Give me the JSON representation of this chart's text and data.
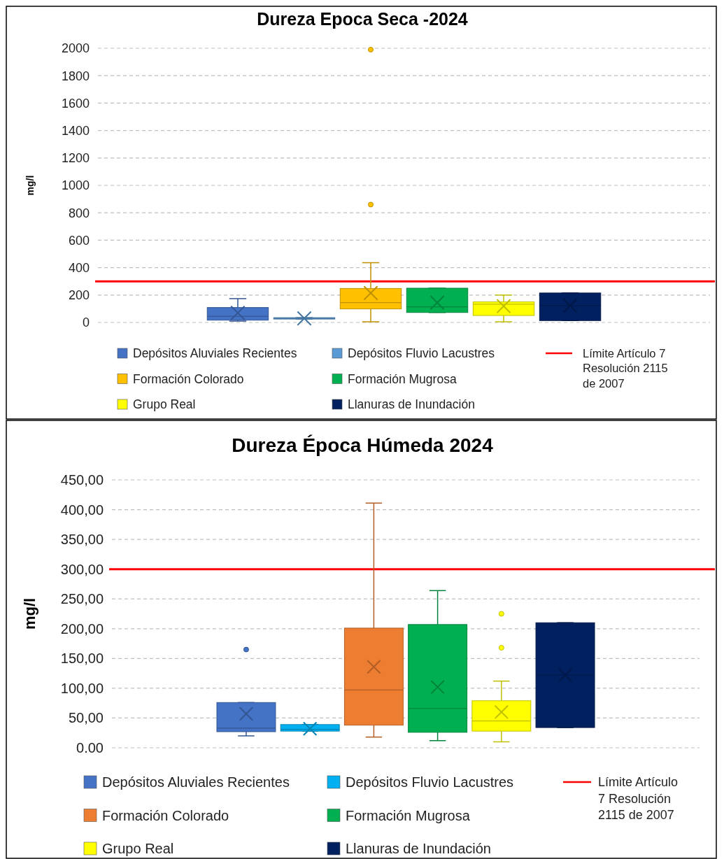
{
  "chart_data": [
    {
      "type": "box",
      "title": "Dureza Epoca Seca -2024",
      "ylabel": "mg/l",
      "categories": [
        null
      ],
      "series": [
        {
          "name": "Depósitos Aluviales Recientes",
          "color": "#4472c4",
          "boxes": [
            {
              "low": 10,
              "q1": 17,
              "median": 45,
              "q3": 109,
              "high": 174,
              "mean": 70
            }
          ]
        },
        {
          "name": "Depósitos Fluvio Lacustres",
          "color": "#5b9bd5",
          "boxes": [
            {
              "low": 25,
              "q1": 25,
              "median": 30,
              "q3": 35,
              "high": 35,
              "mean": 30
            }
          ]
        },
        {
          "name": "Formación Colorado",
          "color": "#ffc000",
          "boxes": [
            {
              "low": 5,
              "q1": 99,
              "median": 145,
              "q3": 248,
              "high": 436,
              "mean": 215,
              "outliers": [
                860,
                1990
              ]
            }
          ]
        },
        {
          "name": "Formación Mugrosa",
          "color": "#00b050",
          "boxes": [
            {
              "low": 73,
              "q1": 73,
              "median": 114,
              "q3": 250,
              "high": 250,
              "mean": 145
            }
          ]
        },
        {
          "name": "Grupo Real",
          "color": "#ffff00",
          "boxes": [
            {
              "low": 5,
              "q1": 51,
              "median": 133,
              "q3": 150,
              "high": 200,
              "mean": 119
            }
          ]
        },
        {
          "name": "Llanuras de Inundación",
          "color": "#002060",
          "boxes": [
            {
              "low": 14,
              "q1": 14,
              "median": 123,
              "q3": 215,
              "high": 215,
              "mean": 123
            }
          ]
        }
      ],
      "ylim": [
        0,
        2000
      ],
      "yticks": [
        0,
        200,
        400,
        600,
        800,
        1000,
        1200,
        1400,
        1600,
        1800,
        2000
      ],
      "ref_lines": [
        {
          "axis": "y",
          "value": 300,
          "label": "Límite Artículo 7 Resolución 2115 de 2007",
          "color": "#ff0000"
        }
      ],
      "grid": "y",
      "legend": "bottom",
      "tick_labels": "y"
    },
    {
      "type": "box",
      "title": "Dureza Época Húmeda 2024",
      "ylabel": "mg/l",
      "categories": [
        null
      ],
      "series": [
        {
          "name": "Depósitos Aluviales Recientes",
          "color": "#4472c4",
          "boxes": [
            {
              "low": 20,
              "q1": 27,
              "median": 33,
              "q3": 76,
              "high": 76,
              "mean": 57,
              "outliers": [
                165
              ]
            }
          ]
        },
        {
          "name": "Depósitos Fluvio Lacustres",
          "color": "#00b0f0",
          "boxes": [
            {
              "low": 28,
              "q1": 28,
              "median": 31,
              "q3": 39,
              "high": 39,
              "mean": 32
            }
          ]
        },
        {
          "name": "Formación Colorado",
          "color": "#ed7d31",
          "boxes": [
            {
              "low": 18,
              "q1": 38,
              "median": 97,
              "q3": 201,
              "high": 411,
              "mean": 136
            }
          ]
        },
        {
          "name": "Formación Mugrosa",
          "color": "#00b050",
          "boxes": [
            {
              "low": 12,
              "q1": 26,
              "median": 66,
              "q3": 207,
              "high": 264,
              "mean": 102
            }
          ]
        },
        {
          "name": "Grupo Real",
          "color": "#ffff00",
          "boxes": [
            {
              "low": 10,
              "q1": 28,
              "median": 45,
              "q3": 79,
              "high": 112,
              "mean": 60,
              "outliers": [
                168,
                225
              ]
            }
          ]
        },
        {
          "name": "Llanuras de Inundación",
          "color": "#002060",
          "boxes": [
            {
              "low": 34,
              "q1": 34,
              "median": 122,
              "q3": 210,
              "high": 210,
              "mean": 122
            }
          ]
        }
      ],
      "ylim": [
        0,
        450
      ],
      "yticks": [
        {
          "value": 0,
          "label": "0.00"
        },
        {
          "value": 50,
          "label": "50,00"
        },
        {
          "value": 100,
          "label": "100,00"
        },
        {
          "value": 150,
          "label": "150,00"
        },
        {
          "value": 200,
          "label": "200,00"
        },
        {
          "value": 250,
          "label": "250,00"
        },
        {
          "value": 300,
          "label": "300,00"
        },
        {
          "value": 350,
          "label": "350,00"
        },
        {
          "value": 400,
          "label": "400,00"
        },
        {
          "value": 450,
          "label": "450,00"
        }
      ],
      "ref_lines": [
        {
          "axis": "y",
          "value": 300,
          "label": "Límite Artículo 7 Resolución 2115 de 2007",
          "color": "#ff0000"
        }
      ],
      "grid": "y",
      "legend": "bottom",
      "tick_labels": "y"
    }
  ]
}
